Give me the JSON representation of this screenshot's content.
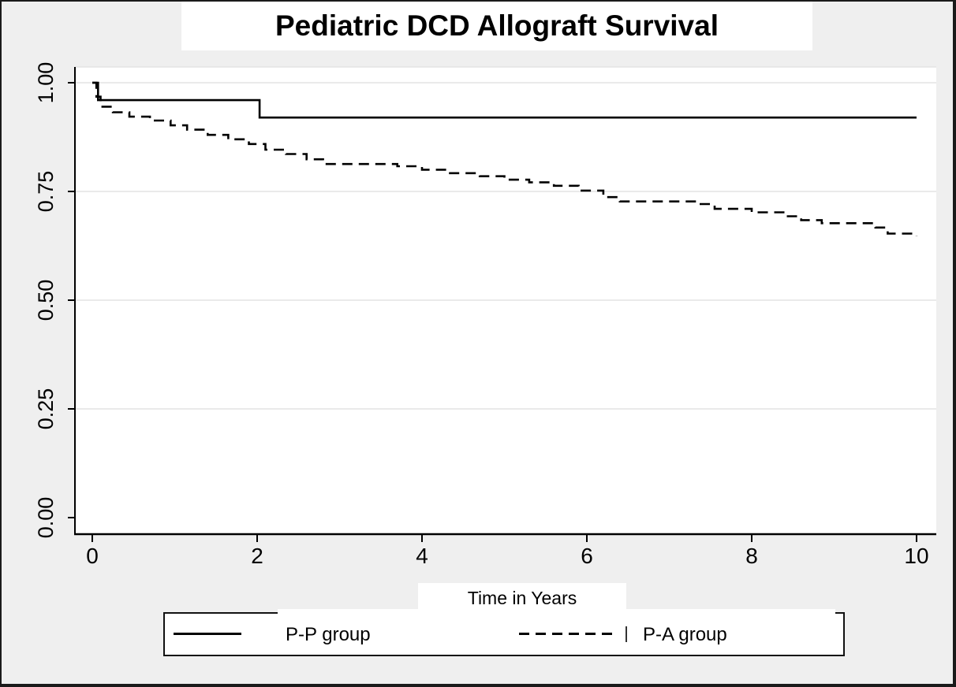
{
  "figure": {
    "background": "#efefef",
    "plot_background": "#ffffff",
    "grid_color": "#e4e4e4",
    "axis_color": "#000000",
    "line_color": "#000000",
    "border_color": "#1a1a1a"
  },
  "chart_data": {
    "type": "line",
    "subtype": "kaplan-meier-step",
    "title": "Pediatric DCD Allograft Survival",
    "xlabel": "Time in Years",
    "ylabel": "",
    "xlim": [
      0,
      10
    ],
    "ylim": [
      0,
      1.0
    ],
    "x_ticks": [
      0,
      2,
      4,
      6,
      8,
      10
    ],
    "y_ticks": [
      "0.00",
      "0.25",
      "0.50",
      "0.75",
      "1.00"
    ],
    "y_tick_values": [
      0,
      0.25,
      0.5,
      0.75,
      1.0
    ],
    "grid": "horizontal",
    "legend_position": "bottom",
    "series": [
      {
        "name": "P-P group",
        "line_style": "solid",
        "step": true,
        "points": [
          [
            0,
            1.0
          ],
          [
            0.07,
            0.96
          ],
          [
            2.03,
            0.92
          ],
          [
            10,
            0.92
          ]
        ]
      },
      {
        "name": "P-A group",
        "line_style": "dashed",
        "step": true,
        "points": [
          [
            0,
            1.0
          ],
          [
            0.05,
            0.968
          ],
          [
            0.1,
            0.945
          ],
          [
            0.25,
            0.932
          ],
          [
            0.45,
            0.922
          ],
          [
            0.7,
            0.913
          ],
          [
            0.95,
            0.902
          ],
          [
            1.15,
            0.892
          ],
          [
            1.4,
            0.88
          ],
          [
            1.65,
            0.87
          ],
          [
            1.9,
            0.859
          ],
          [
            2.1,
            0.846
          ],
          [
            2.35,
            0.836
          ],
          [
            2.6,
            0.824
          ],
          [
            2.8,
            0.813
          ],
          [
            3.7,
            0.808
          ],
          [
            4.0,
            0.8
          ],
          [
            4.3,
            0.792
          ],
          [
            4.7,
            0.785
          ],
          [
            5.0,
            0.777
          ],
          [
            5.3,
            0.771
          ],
          [
            5.6,
            0.763
          ],
          [
            5.9,
            0.752
          ],
          [
            6.2,
            0.737
          ],
          [
            6.4,
            0.727
          ],
          [
            7.35,
            0.721
          ],
          [
            7.55,
            0.71
          ],
          [
            8.0,
            0.702
          ],
          [
            8.4,
            0.693
          ],
          [
            8.6,
            0.684
          ],
          [
            8.85,
            0.677
          ],
          [
            9.5,
            0.667
          ],
          [
            9.65,
            0.653
          ],
          [
            10,
            0.648
          ]
        ]
      }
    ]
  },
  "legend": {
    "entries": [
      {
        "label": "P-P group",
        "style": "solid"
      },
      {
        "label": "P-A group",
        "style": "dashed"
      }
    ]
  }
}
